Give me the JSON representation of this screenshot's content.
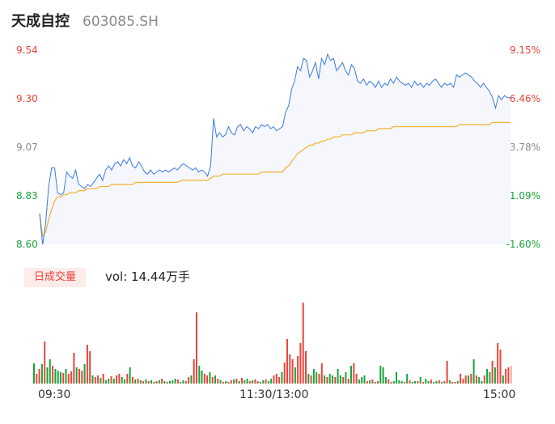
{
  "header": {
    "stock_name": "天成自控",
    "stock_code": "603085.SH"
  },
  "volume_panel": {
    "tag_label": "日成交量",
    "vol_text": "vol: 14.44万手"
  },
  "colors": {
    "up": "#e8443a",
    "down": "#1aa33a",
    "flat": "#8a8a8a",
    "price_line": "#3b7ae0",
    "avg_line": "#f2b233",
    "area_fill": "#f5f7fc"
  },
  "chart_data": [
    {
      "type": "line",
      "title": "",
      "y_ticks_left": [
        "9.54",
        "9.30",
        "9.07",
        "8.83",
        "8.60"
      ],
      "y_ticks_right": [
        "9.15%",
        "6.46%",
        "3.78%",
        "1.09%",
        "-1.60%"
      ],
      "ylim": [
        8.6,
        9.54
      ],
      "x_ticks": [
        "09:30",
        "11:30/13:00",
        "15:00"
      ],
      "series": [
        {
          "role": "price",
          "values": [
            8.75,
            8.6,
            8.7,
            8.88,
            8.97,
            8.97,
            8.85,
            8.84,
            8.85,
            8.95,
            8.93,
            8.92,
            8.96,
            8.89,
            8.88,
            8.87,
            8.89,
            8.88,
            8.9,
            8.92,
            8.94,
            8.91,
            8.96,
            8.98,
            8.96,
            8.99,
            9.0,
            8.98,
            9.01,
            8.99,
            9.02,
            8.98,
            8.97,
            9.0,
            8.98,
            8.95,
            8.94,
            8.96,
            8.94,
            8.95,
            8.96,
            8.95,
            8.96,
            8.95,
            8.96,
            8.97,
            8.96,
            8.98,
            8.99,
            8.98,
            8.97,
            8.96,
            8.97,
            8.95,
            8.96,
            8.95,
            8.93,
            8.98,
            9.21,
            9.12,
            9.14,
            9.12,
            9.13,
            9.17,
            9.14,
            9.13,
            9.17,
            9.18,
            9.15,
            9.17,
            9.16,
            9.14,
            9.17,
            9.16,
            9.18,
            9.17,
            9.18,
            9.16,
            9.17,
            9.15,
            9.16,
            9.17,
            9.24,
            9.27,
            9.35,
            9.39,
            9.46,
            9.44,
            9.5,
            9.49,
            9.41,
            9.44,
            9.48,
            9.4,
            9.5,
            9.47,
            9.52,
            9.49,
            9.5,
            9.44,
            9.46,
            9.48,
            9.44,
            9.42,
            9.47,
            9.45,
            9.39,
            9.38,
            9.4,
            9.37,
            9.39,
            9.38,
            9.36,
            9.39,
            9.36,
            9.38,
            9.37,
            9.4,
            9.38,
            9.41,
            9.39,
            9.38,
            9.37,
            9.38,
            9.36,
            9.39,
            9.37,
            9.38,
            9.36,
            9.38,
            9.37,
            9.39,
            9.4,
            9.38,
            9.36,
            9.38,
            9.37,
            9.38,
            9.36,
            9.42,
            9.41,
            9.42,
            9.43,
            9.42,
            9.41,
            9.39,
            9.38,
            9.36,
            9.38,
            9.36,
            9.34,
            9.31,
            9.26,
            9.32,
            9.3,
            9.32,
            9.31,
            9.31
          ]
        },
        {
          "role": "average",
          "values": [
            8.75,
            8.64,
            8.66,
            8.72,
            8.77,
            8.81,
            8.83,
            8.83,
            8.84,
            8.84,
            8.85,
            8.85,
            8.85,
            8.86,
            8.86,
            8.86,
            8.87,
            8.87,
            8.87,
            8.87,
            8.88,
            8.88,
            8.88,
            8.88,
            8.89,
            8.89,
            8.89,
            8.89,
            8.89,
            8.89,
            8.89,
            8.89,
            8.9,
            8.9,
            8.9,
            8.9,
            8.9,
            8.9,
            8.9,
            8.9,
            8.9,
            8.9,
            8.9,
            8.9,
            8.9,
            8.9,
            8.9,
            8.91,
            8.91,
            8.91,
            8.91,
            8.91,
            8.91,
            8.91,
            8.91,
            8.91,
            8.91,
            8.92,
            8.93,
            8.93,
            8.93,
            8.94,
            8.94,
            8.94,
            8.94,
            8.94,
            8.94,
            8.94,
            8.94,
            8.94,
            8.94,
            8.94,
            8.94,
            8.94,
            8.95,
            8.95,
            8.95,
            8.95,
            8.95,
            8.95,
            8.95,
            8.95,
            8.97,
            8.98,
            9.0,
            9.02,
            9.04,
            9.05,
            9.06,
            9.07,
            9.08,
            9.08,
            9.09,
            9.09,
            9.1,
            9.1,
            9.11,
            9.11,
            9.12,
            9.12,
            9.12,
            9.13,
            9.13,
            9.13,
            9.13,
            9.14,
            9.14,
            9.14,
            9.14,
            9.15,
            9.15,
            9.15,
            9.15,
            9.16,
            9.16,
            9.16,
            9.16,
            9.16,
            9.17,
            9.17,
            9.17,
            9.17,
            9.17,
            9.17,
            9.17,
            9.17,
            9.17,
            9.17,
            9.17,
            9.17,
            9.17,
            9.17,
            9.17,
            9.17,
            9.17,
            9.17,
            9.17,
            9.17,
            9.17,
            9.17,
            9.18,
            9.18,
            9.18,
            9.18,
            9.18,
            9.18,
            9.18,
            9.18,
            9.18,
            9.18,
            9.18,
            9.19,
            9.19,
            9.19,
            9.19,
            9.19,
            9.19,
            9.19
          ]
        }
      ]
    },
    {
      "type": "bar",
      "title": "",
      "x_ticks": [
        "09:30",
        "11:30/13:00",
        "15:00"
      ],
      "values": [
        25,
        12,
        18,
        24,
        52,
        20,
        30,
        22,
        18,
        16,
        14,
        13,
        18,
        12,
        15,
        38,
        20,
        18,
        16,
        24,
        48,
        40,
        10,
        8,
        10,
        7,
        12,
        4,
        6,
        9,
        6,
        10,
        12,
        8,
        5,
        12,
        20,
        8,
        5,
        6,
        4,
        3,
        5,
        3,
        4,
        2,
        3,
        4,
        6,
        3,
        2,
        3,
        4,
        6,
        5,
        2,
        4,
        3,
        8,
        10,
        30,
        88,
        22,
        16,
        12,
        10,
        14,
        8,
        10,
        6,
        4,
        2,
        3,
        2,
        4,
        5,
        6,
        3,
        7,
        4,
        6,
        3,
        4,
        5,
        3,
        2,
        4,
        5,
        3,
        6,
        10,
        12,
        8,
        14,
        26,
        55,
        36,
        30,
        20,
        34,
        50,
        100,
        40,
        12,
        10,
        18,
        14,
        12,
        25,
        10,
        8,
        12,
        10,
        8,
        18,
        10,
        8,
        14,
        6,
        22,
        25,
        12,
        5,
        8,
        10,
        3,
        4,
        5,
        2,
        3,
        22,
        20,
        8,
        5,
        2,
        3,
        14,
        4,
        3,
        2,
        12,
        4,
        2,
        3,
        3,
        8,
        2,
        6,
        3,
        5,
        2,
        3,
        4,
        2,
        3,
        28,
        4,
        2,
        2,
        3,
        12,
        6,
        10,
        10,
        12,
        30,
        10,
        8,
        3,
        10,
        18,
        14,
        28,
        20,
        50,
        42,
        10,
        18,
        20,
        22
      ],
      "directions": [
        "d",
        "u",
        "u",
        "d",
        "u",
        "d",
        "d",
        "u",
        "d",
        "d",
        "d",
        "u",
        "d",
        "u",
        "u",
        "u",
        "d",
        "u",
        "u",
        "d",
        "u",
        "u",
        "d",
        "u",
        "u",
        "d",
        "u",
        "d",
        "d",
        "u",
        "d",
        "u",
        "u",
        "d",
        "d",
        "u",
        "d",
        "u",
        "d",
        "u",
        "d",
        "u",
        "d",
        "u",
        "d",
        "d",
        "u",
        "d",
        "u",
        "d",
        "u",
        "d",
        "d",
        "d",
        "u",
        "d",
        "d",
        "u",
        "u",
        "d",
        "u",
        "u",
        "d",
        "d",
        "u",
        "u",
        "d",
        "u",
        "d",
        "u",
        "d",
        "u",
        "d",
        "u",
        "u",
        "d",
        "u",
        "d",
        "u",
        "d",
        "d",
        "u",
        "d",
        "u",
        "u",
        "d",
        "d",
        "u",
        "d",
        "d",
        "u",
        "u",
        "u",
        "d",
        "u",
        "u",
        "u",
        "u",
        "d",
        "u",
        "u",
        "u",
        "u",
        "d",
        "u",
        "d",
        "d",
        "u",
        "u",
        "d",
        "u",
        "d",
        "d",
        "u",
        "d",
        "d",
        "u",
        "d",
        "u",
        "d",
        "u",
        "u",
        "d",
        "d",
        "d",
        "u",
        "d",
        "u",
        "d",
        "u",
        "d",
        "d",
        "d",
        "u",
        "u",
        "d",
        "d",
        "d",
        "d",
        "u",
        "d",
        "u",
        "d",
        "d",
        "u",
        "d",
        "u",
        "d",
        "d",
        "u",
        "d",
        "d",
        "u",
        "d",
        "u",
        "u",
        "d",
        "u",
        "u",
        "d",
        "u",
        "u",
        "u",
        "d",
        "u",
        "d",
        "u",
        "d",
        "d",
        "u",
        "d",
        "d",
        "u",
        "d",
        "u",
        "u",
        "d",
        "u",
        "u",
        "f"
      ]
    }
  ]
}
